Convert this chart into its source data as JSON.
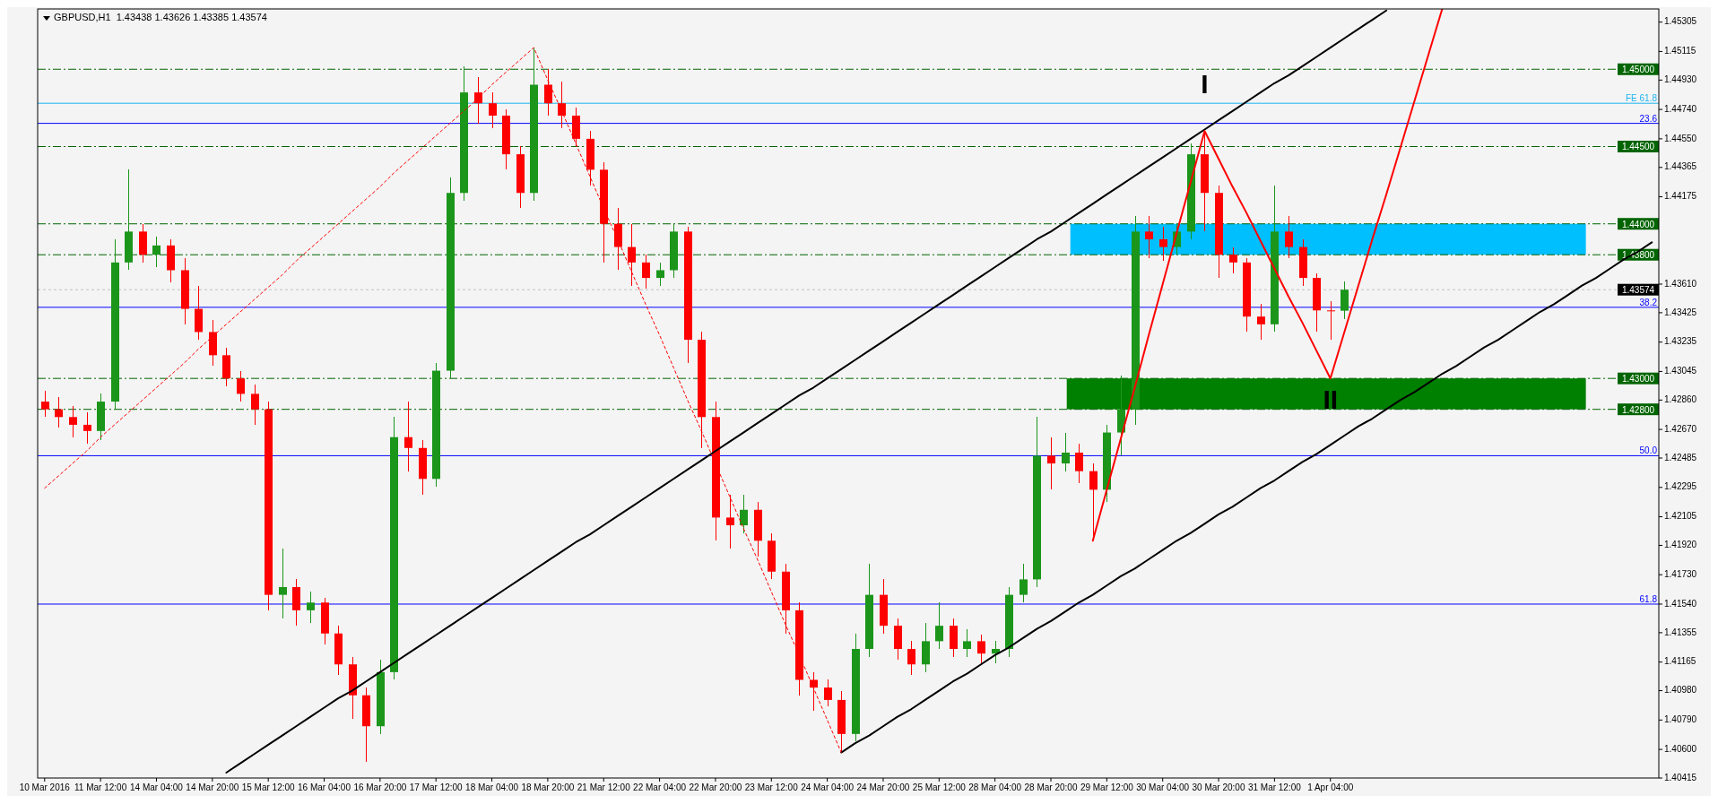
{
  "chart_data": {
    "type": "candlestick",
    "title": "GBPUSD,H1  1.43438 1.43626 1.43385 1.43574",
    "categories": [
      "10 Mar 2016",
      null,
      null,
      null,
      "11 Mar 12:00",
      null,
      null,
      null,
      "14 Mar 04:00",
      null,
      null,
      null,
      "14 Mar 20:00",
      null,
      null,
      null,
      "15 Mar 12:00",
      null,
      null,
      null,
      "16 Mar 04:00",
      null,
      null,
      null,
      "16 Mar 20:00",
      null,
      null,
      null,
      "17 Mar 12:00",
      null,
      null,
      null,
      "18 Mar 04:00",
      null,
      null,
      null,
      "18 Mar 20:00",
      null,
      null,
      null,
      "21 Mar 12:00",
      null,
      null,
      null,
      "22 Mar 04:00",
      null,
      null,
      null,
      "22 Mar 20:00",
      null,
      null,
      null,
      "23 Mar 12:00",
      null,
      null,
      null,
      "24 Mar 04:00",
      null,
      null,
      null,
      "24 Mar 20:00",
      null,
      null,
      null,
      "25 Mar 12:00",
      null,
      null,
      null,
      "28 Mar 04:00",
      null,
      null,
      null,
      "28 Mar 20:00",
      null,
      null,
      null,
      "29 Mar 12:00",
      null,
      null,
      null,
      "30 Mar 04:00",
      null,
      null,
      null,
      "30 Mar 20:00",
      null,
      null,
      null,
      "31 Mar 12:00",
      null,
      null,
      null,
      "1 Apr 04:00",
      null,
      null,
      null,
      null,
      null,
      null,
      null,
      null,
      null,
      null,
      null,
      null,
      null,
      null,
      null,
      null,
      null,
      null,
      null,
      null,
      null,
      null,
      null
    ],
    "ohlc": [
      [
        1.4285,
        1.4292,
        1.4275,
        1.428
      ],
      [
        1.428,
        1.4288,
        1.4268,
        1.4275
      ],
      [
        1.4275,
        1.4282,
        1.4262,
        1.427
      ],
      [
        1.427,
        1.4278,
        1.4258,
        1.4266
      ],
      [
        1.4266,
        1.429,
        1.426,
        1.4285
      ],
      [
        1.4285,
        1.439,
        1.428,
        1.4375
      ],
      [
        1.4375,
        1.4435,
        1.437,
        1.4395
      ],
      [
        1.4395,
        1.44,
        1.4375,
        1.438
      ],
      [
        1.438,
        1.4392,
        1.4372,
        1.4386
      ],
      [
        1.4386,
        1.439,
        1.4362,
        1.437
      ],
      [
        1.437,
        1.4378,
        1.4335,
        1.4345
      ],
      [
        1.4345,
        1.436,
        1.4325,
        1.433
      ],
      [
        1.433,
        1.4338,
        1.4308,
        1.4315
      ],
      [
        1.4315,
        1.432,
        1.4295,
        1.43
      ],
      [
        1.43,
        1.4305,
        1.4285,
        1.429
      ],
      [
        1.429,
        1.4296,
        1.427,
        1.428
      ],
      [
        1.428,
        1.4285,
        1.415,
        1.416
      ],
      [
        1.416,
        1.419,
        1.4145,
        1.4165
      ],
      [
        1.4165,
        1.417,
        1.414,
        1.415
      ],
      [
        1.415,
        1.4162,
        1.4142,
        1.4155
      ],
      [
        1.4155,
        1.4158,
        1.4128,
        1.4135
      ],
      [
        1.4135,
        1.414,
        1.4108,
        1.4115
      ],
      [
        1.4115,
        1.412,
        1.408,
        1.4095
      ],
      [
        1.4095,
        1.41,
        1.4052,
        1.4075
      ],
      [
        1.4075,
        1.4118,
        1.407,
        1.411
      ],
      [
        1.411,
        1.4275,
        1.4105,
        1.4262
      ],
      [
        1.4262,
        1.4285,
        1.424,
        1.4255
      ],
      [
        1.4255,
        1.426,
        1.4225,
        1.4235
      ],
      [
        1.4235,
        1.431,
        1.423,
        1.4305
      ],
      [
        1.4305,
        1.443,
        1.43,
        1.442
      ],
      [
        1.442,
        1.4502,
        1.4415,
        1.4485
      ],
      [
        1.4485,
        1.4495,
        1.4465,
        1.4478
      ],
      [
        1.4478,
        1.4485,
        1.4462,
        1.447
      ],
      [
        1.447,
        1.4474,
        1.4435,
        1.4445
      ],
      [
        1.4445,
        1.445,
        1.441,
        1.442
      ],
      [
        1.442,
        1.4514,
        1.4415,
        1.449
      ],
      [
        1.449,
        1.45,
        1.447,
        1.4478
      ],
      [
        1.4478,
        1.4492,
        1.4462,
        1.447
      ],
      [
        1.447,
        1.4475,
        1.445,
        1.4455
      ],
      [
        1.4455,
        1.446,
        1.4425,
        1.4435
      ],
      [
        1.4435,
        1.444,
        1.4375,
        1.44
      ],
      [
        1.44,
        1.441,
        1.437,
        1.4385
      ],
      [
        1.4385,
        1.44,
        1.436,
        1.4375
      ],
      [
        1.4375,
        1.438,
        1.4358,
        1.4365
      ],
      [
        1.4365,
        1.4375,
        1.436,
        1.437
      ],
      [
        1.437,
        1.44,
        1.4365,
        1.4395
      ],
      [
        1.4395,
        1.4398,
        1.431,
        1.4325
      ],
      [
        1.4325,
        1.433,
        1.4255,
        1.4275
      ],
      [
        1.4275,
        1.4285,
        1.4195,
        1.421
      ],
      [
        1.421,
        1.4225,
        1.419,
        1.4205
      ],
      [
        1.4205,
        1.4225,
        1.42,
        1.4215
      ],
      [
        1.4215,
        1.422,
        1.4185,
        1.4195
      ],
      [
        1.4195,
        1.42,
        1.417,
        1.4175
      ],
      [
        1.4175,
        1.418,
        1.4135,
        1.415
      ],
      [
        1.415,
        1.4155,
        1.4095,
        1.4105
      ],
      [
        1.4105,
        1.411,
        1.4085,
        1.41
      ],
      [
        1.41,
        1.4105,
        1.4088,
        1.4092
      ],
      [
        1.4092,
        1.4098,
        1.4058,
        1.407
      ],
      [
        1.407,
        1.4135,
        1.4065,
        1.4125
      ],
      [
        1.4125,
        1.418,
        1.412,
        1.416
      ],
      [
        1.416,
        1.417,
        1.4135,
        1.414
      ],
      [
        1.414,
        1.4145,
        1.4118,
        1.4125
      ],
      [
        1.4125,
        1.413,
        1.4108,
        1.4115
      ],
      [
        1.4115,
        1.4142,
        1.411,
        1.413
      ],
      [
        1.413,
        1.4155,
        1.4125,
        1.414
      ],
      [
        1.414,
        1.4145,
        1.412,
        1.4125
      ],
      [
        1.4125,
        1.4138,
        1.412,
        1.413
      ],
      [
        1.413,
        1.4134,
        1.4115,
        1.4122
      ],
      [
        1.4122,
        1.413,
        1.4116,
        1.4125
      ],
      [
        1.4125,
        1.4165,
        1.412,
        1.416
      ],
      [
        1.416,
        1.418,
        1.4155,
        1.417
      ],
      [
        1.417,
        1.4275,
        1.4165,
        1.425
      ],
      [
        1.425,
        1.4262,
        1.4228,
        1.4245
      ],
      [
        1.4245,
        1.4265,
        1.424,
        1.4252
      ],
      [
        1.4252,
        1.4258,
        1.4232,
        1.424
      ],
      [
        1.424,
        1.4245,
        1.4195,
        1.4228
      ],
      [
        1.4228,
        1.427,
        1.422,
        1.4265
      ],
      [
        1.4265,
        1.4302,
        1.425,
        1.428
      ],
      [
        1.428,
        1.4405,
        1.427,
        1.4395
      ],
      [
        1.4395,
        1.4405,
        1.4378,
        1.439
      ],
      [
        1.439,
        1.4398,
        1.4376,
        1.4385
      ],
      [
        1.4385,
        1.44,
        1.438,
        1.4395
      ],
      [
        1.4395,
        1.4452,
        1.439,
        1.4445
      ],
      [
        1.4445,
        1.446,
        1.4395,
        1.442
      ],
      [
        1.442,
        1.4425,
        1.4365,
        1.438
      ],
      [
        1.438,
        1.4385,
        1.4368,
        1.4375
      ],
      [
        1.4375,
        1.4378,
        1.433,
        1.434
      ],
      [
        1.434,
        1.4348,
        1.4325,
        1.4335
      ],
      [
        1.4335,
        1.4425,
        1.433,
        1.4395
      ],
      [
        1.4395,
        1.4405,
        1.4378,
        1.4385
      ],
      [
        1.4385,
        1.439,
        1.436,
        1.4365
      ],
      [
        1.4365,
        1.4368,
        1.433,
        1.4344
      ],
      [
        1.4344,
        1.435,
        1.4325,
        1.43438
      ],
      [
        1.43438,
        1.43626,
        1.43385,
        1.43574
      ],
      null,
      null,
      null,
      null,
      null,
      null,
      null,
      null,
      null,
      null,
      null,
      null,
      null,
      null,
      null,
      null,
      null,
      null,
      null,
      null,
      null,
      null
    ],
    "series": [
      {
        "type": "line",
        "color": "#000000",
        "line_style": "solid",
        "values": [
          null,
          null,
          null,
          null,
          null,
          null,
          null,
          null,
          null,
          null,
          null,
          null,
          null,
          1.4045,
          1.4051,
          1.4057,
          1.4063,
          1.4069,
          1.4075,
          1.4081,
          1.4087,
          1.4093,
          1.4098,
          1.4104,
          1.411,
          1.4116,
          1.4122,
          1.4128,
          1.4134,
          1.414,
          1.4146,
          1.4152,
          1.4158,
          1.4164,
          1.417,
          1.4176,
          1.4182,
          1.4188,
          1.4194,
          1.4199,
          1.4205,
          1.4211,
          1.4217,
          1.4223,
          1.4229,
          1.4235,
          1.4241,
          1.4247,
          1.4253,
          1.4259,
          1.4265,
          1.4271,
          1.4277,
          1.4283,
          1.4289,
          1.4294,
          1.43,
          1.4306,
          1.4312,
          1.4318,
          1.4324,
          1.433,
          1.4336,
          1.4342,
          1.4348,
          1.4354,
          1.436,
          1.4366,
          1.4372,
          1.4378,
          1.4384,
          1.439,
          1.4395,
          1.4401,
          1.4407,
          1.4413,
          1.4419,
          1.4425,
          1.4431,
          1.4437,
          1.4443,
          1.4449,
          1.4455,
          1.4461,
          1.4467,
          1.4473,
          1.4479,
          1.4485,
          1.4491,
          1.4496,
          1.4502,
          1.4508,
          1.4514,
          1.452,
          1.4526,
          1.4532,
          1.4538,
          null,
          null,
          null,
          null,
          null,
          null,
          null,
          null,
          null,
          null,
          null,
          null,
          null,
          null,
          null,
          null,
          null,
          null,
          null
        ]
      },
      {
        "type": "line",
        "color": "#000000",
        "line_style": "solid",
        "values": [
          null,
          null,
          null,
          null,
          null,
          null,
          null,
          null,
          null,
          null,
          null,
          null,
          null,
          null,
          null,
          null,
          null,
          null,
          null,
          null,
          null,
          null,
          null,
          null,
          null,
          null,
          null,
          null,
          null,
          null,
          null,
          null,
          null,
          null,
          null,
          null,
          null,
          null,
          null,
          null,
          null,
          null,
          null,
          null,
          null,
          null,
          null,
          null,
          null,
          null,
          null,
          null,
          null,
          null,
          null,
          null,
          null,
          1.4058,
          1.4064,
          1.4069,
          1.4075,
          1.4081,
          1.4086,
          1.4092,
          1.4098,
          1.4104,
          1.4109,
          1.4115,
          1.4121,
          1.4126,
          1.4132,
          1.4138,
          1.4143,
          1.4149,
          1.4155,
          1.416,
          1.4166,
          1.4172,
          1.4177,
          1.4183,
          1.4189,
          1.4195,
          1.42,
          1.4206,
          1.4212,
          1.4217,
          1.4223,
          1.4229,
          1.4234,
          1.424,
          1.4246,
          1.4251,
          1.4257,
          1.4263,
          1.4269,
          1.4274,
          1.428,
          1.4286,
          1.4291,
          1.4297,
          1.4303,
          1.4308,
          1.4314,
          1.432,
          1.4325,
          1.4331,
          1.4337,
          1.4343,
          1.4348,
          1.4354,
          1.436,
          1.4365,
          1.4371,
          1.4377,
          1.4382,
          1.4388
        ]
      },
      {
        "type": "line",
        "color": "#ff0000",
        "line_style": "solid",
        "values": [
          null,
          null,
          null,
          null,
          null,
          null,
          null,
          null,
          null,
          null,
          null,
          null,
          null,
          null,
          null,
          null,
          null,
          null,
          null,
          null,
          null,
          null,
          null,
          null,
          null,
          null,
          null,
          null,
          null,
          null,
          null,
          null,
          null,
          null,
          null,
          null,
          null,
          null,
          null,
          null,
          null,
          null,
          null,
          null,
          null,
          null,
          null,
          null,
          null,
          null,
          null,
          null,
          null,
          null,
          null,
          null,
          null,
          null,
          null,
          null,
          null,
          null,
          null,
          null,
          null,
          null,
          null,
          null,
          null,
          null,
          null,
          null,
          null,
          null,
          null,
          1.4195,
          1.4228,
          1.4261,
          1.4294,
          1.4328,
          1.4361,
          1.4394,
          1.4427,
          1.446,
          1.4442,
          1.4424,
          1.4407,
          1.4389,
          1.4371,
          1.4353,
          1.4336,
          1.4318,
          1.43,
          1.433,
          1.436,
          1.439,
          1.4419,
          1.4449,
          1.4479,
          1.4509,
          1.4539,
          null,
          null,
          null,
          null,
          null,
          null,
          null,
          null,
          null,
          null,
          null,
          null,
          null,
          null,
          null
        ]
      },
      {
        "type": "line",
        "color": "#ff0000",
        "line_style": "dotted",
        "values": [
          1.4229,
          1.4237,
          1.4245,
          1.4253,
          1.4262,
          1.427,
          1.4278,
          1.4286,
          1.4294,
          1.4302,
          1.431,
          1.4319,
          1.4327,
          1.4335,
          1.4343,
          1.4351,
          1.4359,
          1.4367,
          1.4376,
          1.4384,
          1.4392,
          1.44,
          1.4408,
          1.4416,
          1.4424,
          1.4433,
          1.4441,
          1.4449,
          1.4457,
          1.4465,
          1.4473,
          1.4481,
          1.449,
          1.4498,
          1.4506,
          1.4514,
          1.4493,
          1.4473,
          1.4452,
          1.4431,
          1.441,
          1.439,
          1.4369,
          1.4348,
          1.4328,
          1.4307,
          1.4286,
          1.4266,
          1.4245,
          1.4224,
          1.4203,
          1.4183,
          1.4162,
          1.4141,
          1.4121,
          1.41,
          1.4079,
          1.4058,
          null,
          null,
          null,
          null,
          null,
          null,
          null,
          null,
          null,
          null,
          null,
          null,
          null,
          null,
          null,
          null,
          null,
          null,
          null,
          null,
          null,
          null,
          null,
          null,
          null,
          null,
          null,
          null,
          null,
          null,
          null,
          null,
          null,
          null,
          null,
          null,
          null,
          null,
          null,
          null,
          null,
          null,
          null,
          null,
          null,
          null,
          null,
          null,
          null,
          null,
          null,
          null,
          null,
          null,
          null,
          null,
          null,
          null
        ]
      }
    ],
    "ylim": [
      1.40415,
      1.4539
    ],
    "yticks": [
      {
        "value": 1.45305,
        "label": "1.45305"
      },
      {
        "value": 1.45115,
        "label": "1.45115"
      },
      {
        "value": 1.4493,
        "label": "1.44930"
      },
      {
        "value": 1.4474,
        "label": "1.44740"
      },
      {
        "value": 1.4455,
        "label": "1.44550"
      },
      {
        "value": 1.44365,
        "label": "1.44365"
      },
      {
        "value": 1.44175,
        "label": "1.44175"
      },
      {
        "value": 1.4361,
        "label": "1.43610"
      },
      {
        "value": 1.43425,
        "label": "1.43425"
      },
      {
        "value": 1.43235,
        "label": "1.43235"
      },
      {
        "value": 1.43045,
        "label": "1.43045"
      },
      {
        "value": 1.4286,
        "label": "1.42860"
      },
      {
        "value": 1.4267,
        "label": "1.42670"
      },
      {
        "value": 1.42485,
        "label": "1.42485"
      },
      {
        "value": 1.42295,
        "label": "1.42295"
      },
      {
        "value": 1.42105,
        "label": "1.42105"
      },
      {
        "value": 1.4192,
        "label": "1.41920"
      },
      {
        "value": 1.4173,
        "label": "1.41730"
      },
      {
        "value": 1.4154,
        "label": "1.41540"
      },
      {
        "value": 1.41355,
        "label": "1.41355"
      },
      {
        "value": 1.41165,
        "label": "1.41165"
      },
      {
        "value": 1.4098,
        "label": "1.40980"
      },
      {
        "value": 1.4079,
        "label": "1.40790"
      },
      {
        "value": 1.406,
        "label": "1.40600"
      },
      {
        "value": 1.40415,
        "label": "1.40415"
      }
    ],
    "ref_lines": [
      {
        "axis": "y",
        "value": 1.45,
        "label": "1.45000",
        "color": "#006400",
        "line_style": "dashed"
      },
      {
        "axis": "y",
        "value": 1.445,
        "label": "1.44500",
        "color": "#006400",
        "line_style": "dashed"
      },
      {
        "axis": "y",
        "value": 1.44,
        "label": "1.44000",
        "color": "#006400",
        "line_style": "dashed"
      },
      {
        "axis": "y",
        "value": 1.438,
        "label": "1.43800",
        "color": "#006400",
        "line_style": "dashed"
      },
      {
        "axis": "y",
        "value": 1.43,
        "label": "1.43000",
        "color": "#006400",
        "line_style": "dashed"
      },
      {
        "axis": "y",
        "value": 1.428,
        "label": "1.42800",
        "color": "#006400",
        "line_style": "dashed"
      },
      {
        "axis": "y",
        "value": 1.43574,
        "label": "1.43574",
        "color": "#c0c0c0",
        "line_style": "dotted"
      },
      {
        "axis": "y",
        "value": 1.4478,
        "label": "FE 61.8",
        "color": "#1eb4f0",
        "line_style": "solid"
      },
      {
        "axis": "y",
        "value": 1.4465,
        "color": "#0000ff",
        "line_style": "solid"
      },
      {
        "axis": "y",
        "value": 1.4346,
        "color": "#0000ff",
        "line_style": "solid"
      },
      {
        "axis": "y",
        "value": 1.425,
        "color": "#0000ff",
        "line_style": "solid"
      },
      {
        "axis": "y",
        "value": 1.4154,
        "color": "#0000ff",
        "line_style": "solid"
      }
    ],
    "bands": [
      {
        "axis": "y",
        "from": 1.438,
        "to": 1.44,
        "color": "#00bfff"
      },
      {
        "axis": "y",
        "from": 1.428,
        "to": 1.43,
        "color": "#008000"
      }
    ],
    "annotations": [
      "I",
      "II",
      {
        "text": "23.6",
        "y": 1.4465
      },
      {
        "text": "38.2",
        "y": 1.4346
      },
      {
        "text": "50.0",
        "y": 1.425
      },
      {
        "text": "61.8",
        "y": 1.4154
      }
    ],
    "grid": false
  }
}
